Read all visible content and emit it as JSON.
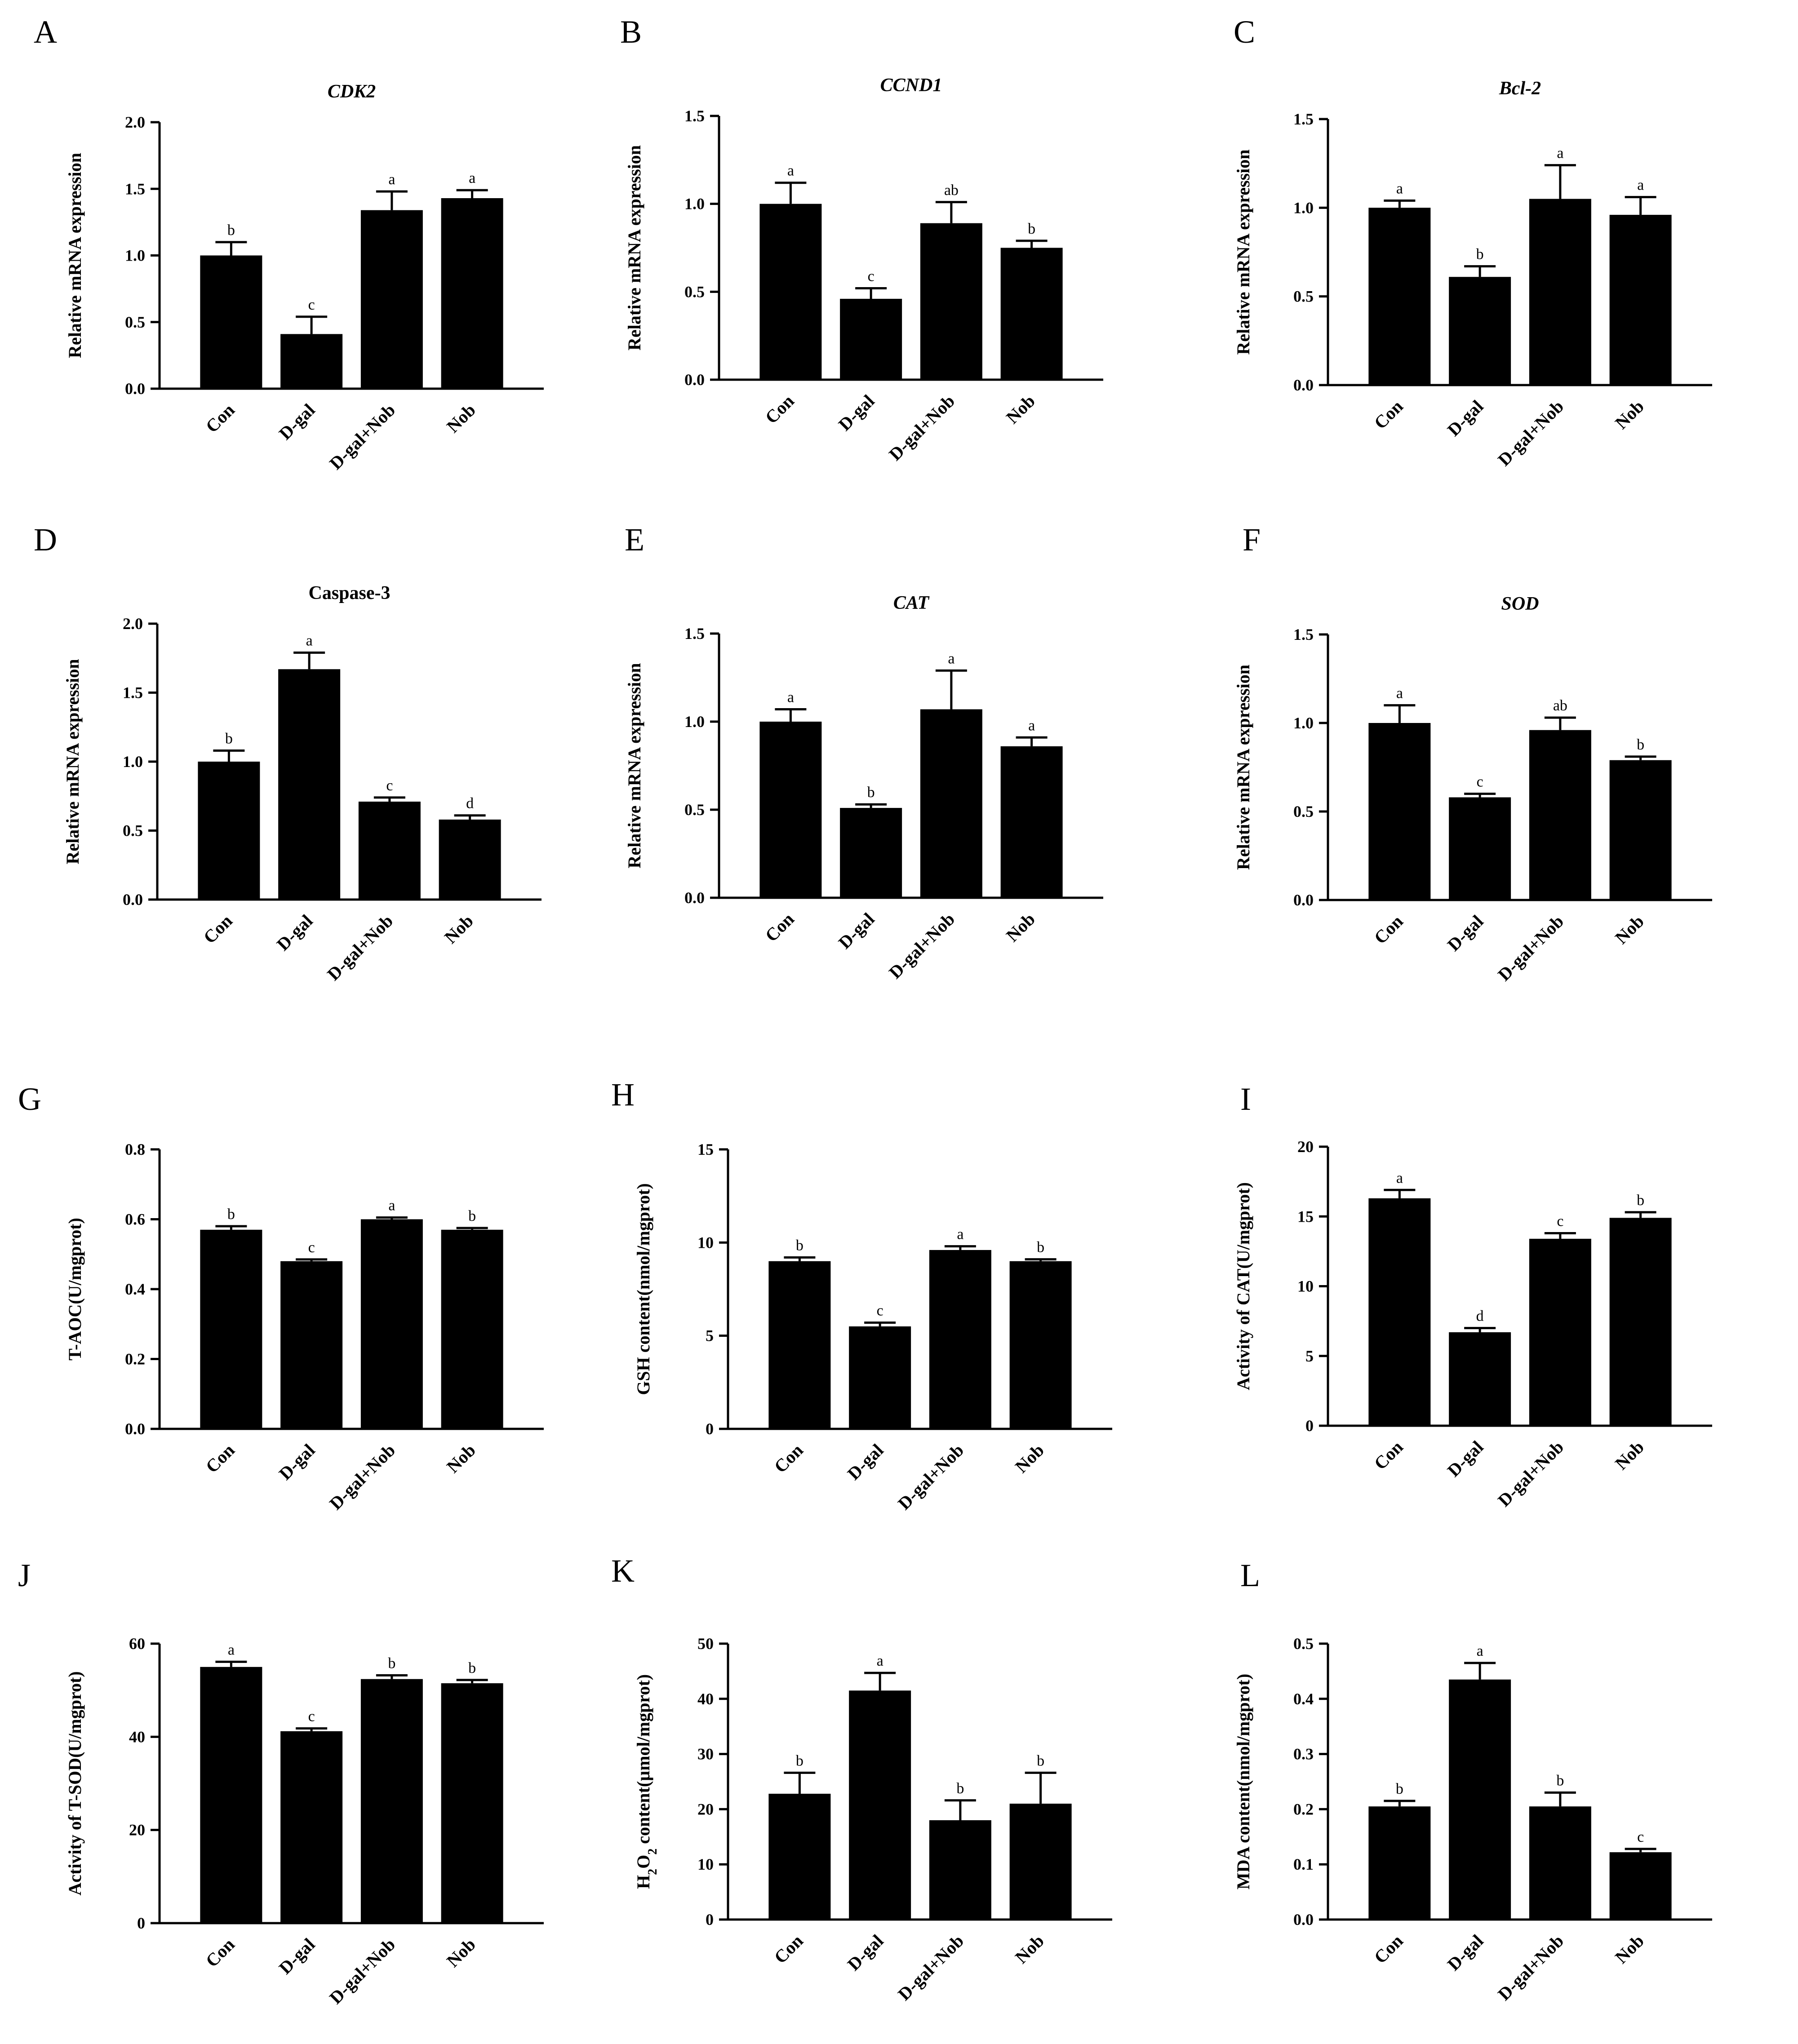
{
  "chart_data": [
    {
      "panel": "A",
      "type": "bar",
      "title": "CDK2",
      "title_italic": true,
      "ylabel": "Relative mRNA expression",
      "ylim": [
        0,
        2.0
      ],
      "yticks": [
        "0.0",
        "0.5",
        "1.0",
        "1.5",
        "2.0"
      ],
      "categories": [
        "Con",
        "D-gal",
        "D-gal+Nob",
        "Nob"
      ],
      "values": [
        1.0,
        0.41,
        1.34,
        1.43
      ],
      "errors": [
        0.1,
        0.13,
        0.14,
        0.06
      ],
      "sig": [
        "b",
        "c",
        "a",
        "a"
      ]
    },
    {
      "panel": "B",
      "type": "bar",
      "title": "CCND1",
      "title_italic": true,
      "ylabel": "Relative mRNA expression",
      "ylim": [
        0,
        1.5
      ],
      "yticks": [
        "0.0",
        "0.5",
        "1.0",
        "1.5"
      ],
      "categories": [
        "Con",
        "D-gal",
        "D-gal+Nob",
        "Nob"
      ],
      "values": [
        1.0,
        0.46,
        0.89,
        0.75
      ],
      "errors": [
        0.12,
        0.06,
        0.12,
        0.04
      ],
      "sig": [
        "a",
        "c",
        "ab",
        "b"
      ]
    },
    {
      "panel": "C",
      "type": "bar",
      "title": "Bcl-2",
      "title_italic": true,
      "ylabel": "Relative mRNA expression",
      "ylim": [
        0,
        1.5
      ],
      "yticks": [
        "0.0",
        "0.5",
        "1.0",
        "1.5"
      ],
      "categories": [
        "Con",
        "D-gal",
        "D-gal+Nob",
        "Nob"
      ],
      "values": [
        1.0,
        0.61,
        1.05,
        0.96
      ],
      "errors": [
        0.04,
        0.06,
        0.19,
        0.1
      ],
      "sig": [
        "a",
        "b",
        "a",
        "a"
      ]
    },
    {
      "panel": "D",
      "type": "bar",
      "title": "Caspase-3",
      "title_italic": false,
      "ylabel": "Relative mRNA expression",
      "ylim": [
        0,
        2.0
      ],
      "yticks": [
        "0.0",
        "0.5",
        "1.0",
        "1.5",
        "2.0"
      ],
      "categories": [
        "Con",
        "D-gal",
        "D-gal+Nob",
        "Nob"
      ],
      "values": [
        1.0,
        1.67,
        0.71,
        0.58
      ],
      "errors": [
        0.08,
        0.12,
        0.03,
        0.03
      ],
      "sig": [
        "b",
        "a",
        "c",
        "d"
      ]
    },
    {
      "panel": "E",
      "type": "bar",
      "title": "CAT",
      "title_italic": true,
      "ylabel": "Relative mRNA expression",
      "ylim": [
        0,
        1.5
      ],
      "yticks": [
        "0.0",
        "0.5",
        "1.0",
        "1.5"
      ],
      "categories": [
        "Con",
        "D-gal",
        "D-gal+Nob",
        "Nob"
      ],
      "values": [
        1.0,
        0.51,
        1.07,
        0.86
      ],
      "errors": [
        0.07,
        0.02,
        0.22,
        0.05
      ],
      "sig": [
        "a",
        "b",
        "a",
        "a"
      ]
    },
    {
      "panel": "F",
      "type": "bar",
      "title": "SOD",
      "title_italic": true,
      "ylabel": "Relative mRNA expression",
      "ylim": [
        0,
        1.5
      ],
      "yticks": [
        "0.0",
        "0.5",
        "1.0",
        "1.5"
      ],
      "categories": [
        "Con",
        "D-gal",
        "D-gal+Nob",
        "Nob"
      ],
      "values": [
        1.0,
        0.58,
        0.96,
        0.79
      ],
      "errors": [
        0.1,
        0.02,
        0.07,
        0.02
      ],
      "sig": [
        "a",
        "c",
        "ab",
        "b"
      ]
    },
    {
      "panel": "G",
      "type": "bar",
      "title": "",
      "title_italic": false,
      "ylabel": "T-AOC(U/mgprot)",
      "ylim": [
        0,
        0.8
      ],
      "yticks": [
        "0.0",
        "0.2",
        "0.4",
        "0.6",
        "0.8"
      ],
      "categories": [
        "Con",
        "D-gal",
        "D-gal+Nob",
        "Nob"
      ],
      "values": [
        0.57,
        0.48,
        0.6,
        0.57
      ],
      "errors": [
        0.01,
        0.005,
        0.005,
        0.005
      ],
      "sig": [
        "b",
        "c",
        "a",
        "b"
      ]
    },
    {
      "panel": "H",
      "type": "bar",
      "title": "",
      "title_italic": false,
      "ylabel": "GSH content(nmol/mgprot)",
      "ylim": [
        0,
        15
      ],
      "yticks": [
        "0",
        "5",
        "10",
        "15"
      ],
      "categories": [
        "Con",
        "D-gal",
        "D-gal+Nob",
        "Nob"
      ],
      "values": [
        9.0,
        5.5,
        9.6,
        9.0
      ],
      "errors": [
        0.2,
        0.2,
        0.2,
        0.1
      ],
      "sig": [
        "b",
        "c",
        "a",
        "b"
      ]
    },
    {
      "panel": "I",
      "type": "bar",
      "title": "",
      "title_italic": false,
      "ylabel": "Activity of CAT(U/mgprot)",
      "ylim": [
        0,
        20
      ],
      "yticks": [
        "0",
        "5",
        "10",
        "15",
        "20"
      ],
      "categories": [
        "Con",
        "D-gal",
        "D-gal+Nob",
        "Nob"
      ],
      "values": [
        16.3,
        6.7,
        13.4,
        14.9
      ],
      "errors": [
        0.6,
        0.3,
        0.4,
        0.4
      ],
      "sig": [
        "a",
        "d",
        "c",
        "b"
      ]
    },
    {
      "panel": "J",
      "type": "bar",
      "title": "",
      "title_italic": false,
      "ylabel": "Activity of T-SOD(U/mgprot)",
      "ylim": [
        0,
        60
      ],
      "yticks": [
        "0",
        "20",
        "40",
        "60"
      ],
      "categories": [
        "Con",
        "D-gal",
        "D-gal+Nob",
        "Nob"
      ],
      "values": [
        55.0,
        41.2,
        52.4,
        51.5
      ],
      "errors": [
        1.1,
        0.6,
        0.8,
        0.7
      ],
      "sig": [
        "a",
        "c",
        "b",
        "b"
      ]
    },
    {
      "panel": "K",
      "type": "bar",
      "title": "",
      "title_italic": false,
      "ylabel": "H2O2 content(µmol/mgprot)",
      "ylim": [
        0,
        50
      ],
      "yticks": [
        "0",
        "10",
        "20",
        "30",
        "40",
        "50"
      ],
      "categories": [
        "Con",
        "D-gal",
        "D-gal+Nob",
        "Nob"
      ],
      "values": [
        22.8,
        41.5,
        18.0,
        21.0
      ],
      "errors": [
        3.8,
        3.2,
        3.6,
        5.6
      ],
      "sig": [
        "b",
        "a",
        "b",
        "b"
      ]
    },
    {
      "panel": "L",
      "type": "bar",
      "title": "",
      "title_italic": false,
      "ylabel": "MDA content(nmol/mgprot)",
      "ylim": [
        0,
        0.5
      ],
      "yticks": [
        "0.0",
        "0.1",
        "0.2",
        "0.3",
        "0.4",
        "0.5"
      ],
      "categories": [
        "Con",
        "D-gal",
        "D-gal+Nob",
        "Nob"
      ],
      "values": [
        0.205,
        0.435,
        0.205,
        0.122
      ],
      "errors": [
        0.01,
        0.03,
        0.025,
        0.006
      ],
      "sig": [
        "b",
        "a",
        "b",
        "c"
      ]
    }
  ]
}
